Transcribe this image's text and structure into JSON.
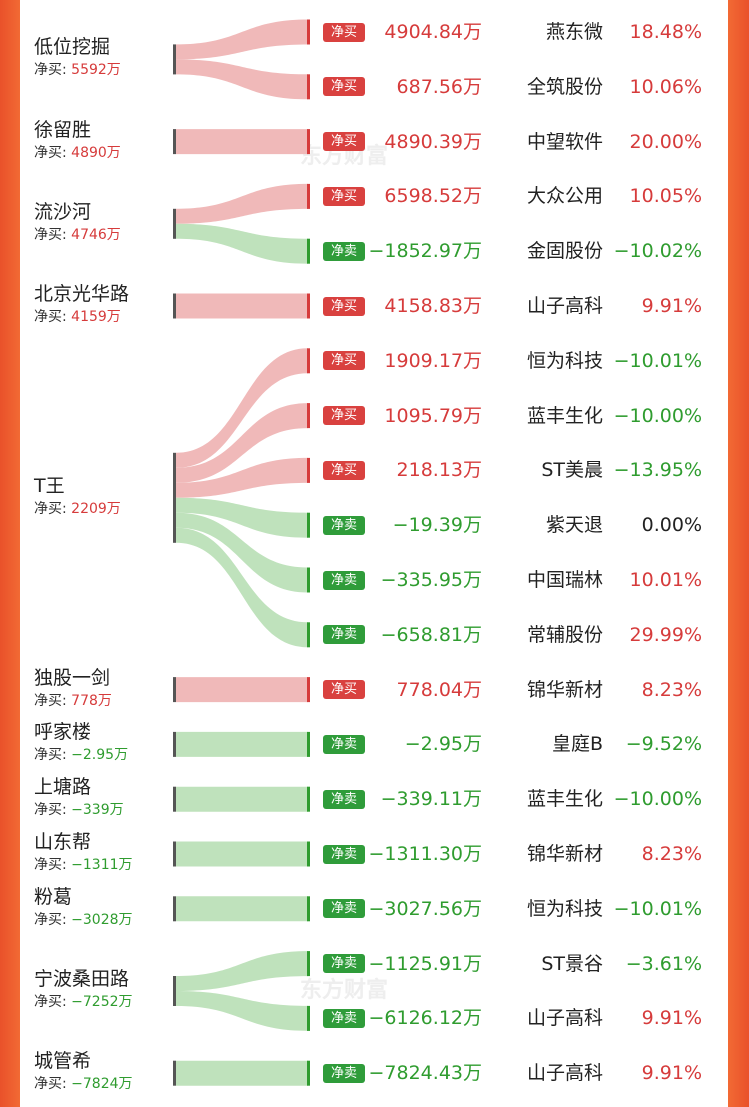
{
  "watermark": "东方财富",
  "labels": {
    "net_buy_prefix": "净买: ",
    "unit": "万",
    "buy_badge": "净买",
    "sell_badge": "净卖"
  },
  "colors": {
    "frame": "#ea5a2a",
    "buy_flow": "#f0b9b9",
    "sell_flow": "#bfe2bc",
    "red": "#d63b3b",
    "green": "#2f9c2f"
  },
  "traders": [
    {
      "name": "低位挖掘",
      "net": "5592万",
      "net_dir": "buy"
    },
    {
      "name": "徐留胜",
      "net": "4890万",
      "net_dir": "buy"
    },
    {
      "name": "流沙河",
      "net": "4746万",
      "net_dir": "buy"
    },
    {
      "name": "北京光华路",
      "net": "4159万",
      "net_dir": "buy"
    },
    {
      "name": "T王",
      "net": "2209万",
      "net_dir": "buy"
    },
    {
      "name": "独股一剑",
      "net": "778万",
      "net_dir": "buy"
    },
    {
      "name": "呼家楼",
      "net": "−2.95万",
      "net_dir": "sell"
    },
    {
      "name": "上塘路",
      "net": "−339万",
      "net_dir": "sell"
    },
    {
      "name": "山东帮",
      "net": "−1311万",
      "net_dir": "sell"
    },
    {
      "name": "粉葛",
      "net": "−3028万",
      "net_dir": "sell"
    },
    {
      "name": "宁波桑田路",
      "net": "−7252万",
      "net_dir": "sell"
    },
    {
      "name": "城管希",
      "net": "−7824万",
      "net_dir": "sell"
    }
  ],
  "trades": [
    {
      "trader": 0,
      "type": "buy",
      "amount": "4904.84万",
      "stock": "燕东微",
      "change": "18.48%",
      "change_dir": "up"
    },
    {
      "trader": 0,
      "type": "buy",
      "amount": "687.56万",
      "stock": "全筑股份",
      "change": "10.06%",
      "change_dir": "up"
    },
    {
      "trader": 1,
      "type": "buy",
      "amount": "4890.39万",
      "stock": "中望软件",
      "change": "20.00%",
      "change_dir": "up"
    },
    {
      "trader": 2,
      "type": "buy",
      "amount": "6598.52万",
      "stock": "大众公用",
      "change": "10.05%",
      "change_dir": "up"
    },
    {
      "trader": 2,
      "type": "sell",
      "amount": "−1852.97万",
      "stock": "金固股份",
      "change": "−10.02%",
      "change_dir": "down"
    },
    {
      "trader": 3,
      "type": "buy",
      "amount": "4158.83万",
      "stock": "山子高科",
      "change": "9.91%",
      "change_dir": "up"
    },
    {
      "trader": 4,
      "type": "buy",
      "amount": "1909.17万",
      "stock": "恒为科技",
      "change": "−10.01%",
      "change_dir": "down"
    },
    {
      "trader": 4,
      "type": "buy",
      "amount": "1095.79万",
      "stock": "蓝丰生化",
      "change": "−10.00%",
      "change_dir": "down"
    },
    {
      "trader": 4,
      "type": "buy",
      "amount": "218.13万",
      "stock": "ST美晨",
      "change": "−13.95%",
      "change_dir": "down"
    },
    {
      "trader": 4,
      "type": "sell",
      "amount": "−19.39万",
      "stock": "紫天退",
      "change": "0.00%",
      "change_dir": "flat"
    },
    {
      "trader": 4,
      "type": "sell",
      "amount": "−335.95万",
      "stock": "中国瑞林",
      "change": "10.01%",
      "change_dir": "up"
    },
    {
      "trader": 4,
      "type": "sell",
      "amount": "−658.81万",
      "stock": "常辅股份",
      "change": "29.99%",
      "change_dir": "up"
    },
    {
      "trader": 5,
      "type": "buy",
      "amount": "778.04万",
      "stock": "锦华新材",
      "change": "8.23%",
      "change_dir": "up"
    },
    {
      "trader": 6,
      "type": "sell",
      "amount": "−2.95万",
      "stock": "皇庭B",
      "change": "−9.52%",
      "change_dir": "down"
    },
    {
      "trader": 7,
      "type": "sell",
      "amount": "−339.11万",
      "stock": "蓝丰生化",
      "change": "−10.00%",
      "change_dir": "down"
    },
    {
      "trader": 8,
      "type": "sell",
      "amount": "−1311.30万",
      "stock": "锦华新材",
      "change": "8.23%",
      "change_dir": "up"
    },
    {
      "trader": 9,
      "type": "sell",
      "amount": "−3027.56万",
      "stock": "恒为科技",
      "change": "−10.01%",
      "change_dir": "down"
    },
    {
      "trader": 10,
      "type": "sell",
      "amount": "−1125.91万",
      "stock": "ST景谷",
      "change": "−3.61%",
      "change_dir": "down"
    },
    {
      "trader": 10,
      "type": "sell",
      "amount": "−6126.12万",
      "stock": "山子高科",
      "change": "9.91%",
      "change_dir": "up"
    },
    {
      "trader": 11,
      "type": "sell",
      "amount": "−7824.43万",
      "stock": "山子高科",
      "change": "9.91%",
      "change_dir": "up"
    }
  ]
}
